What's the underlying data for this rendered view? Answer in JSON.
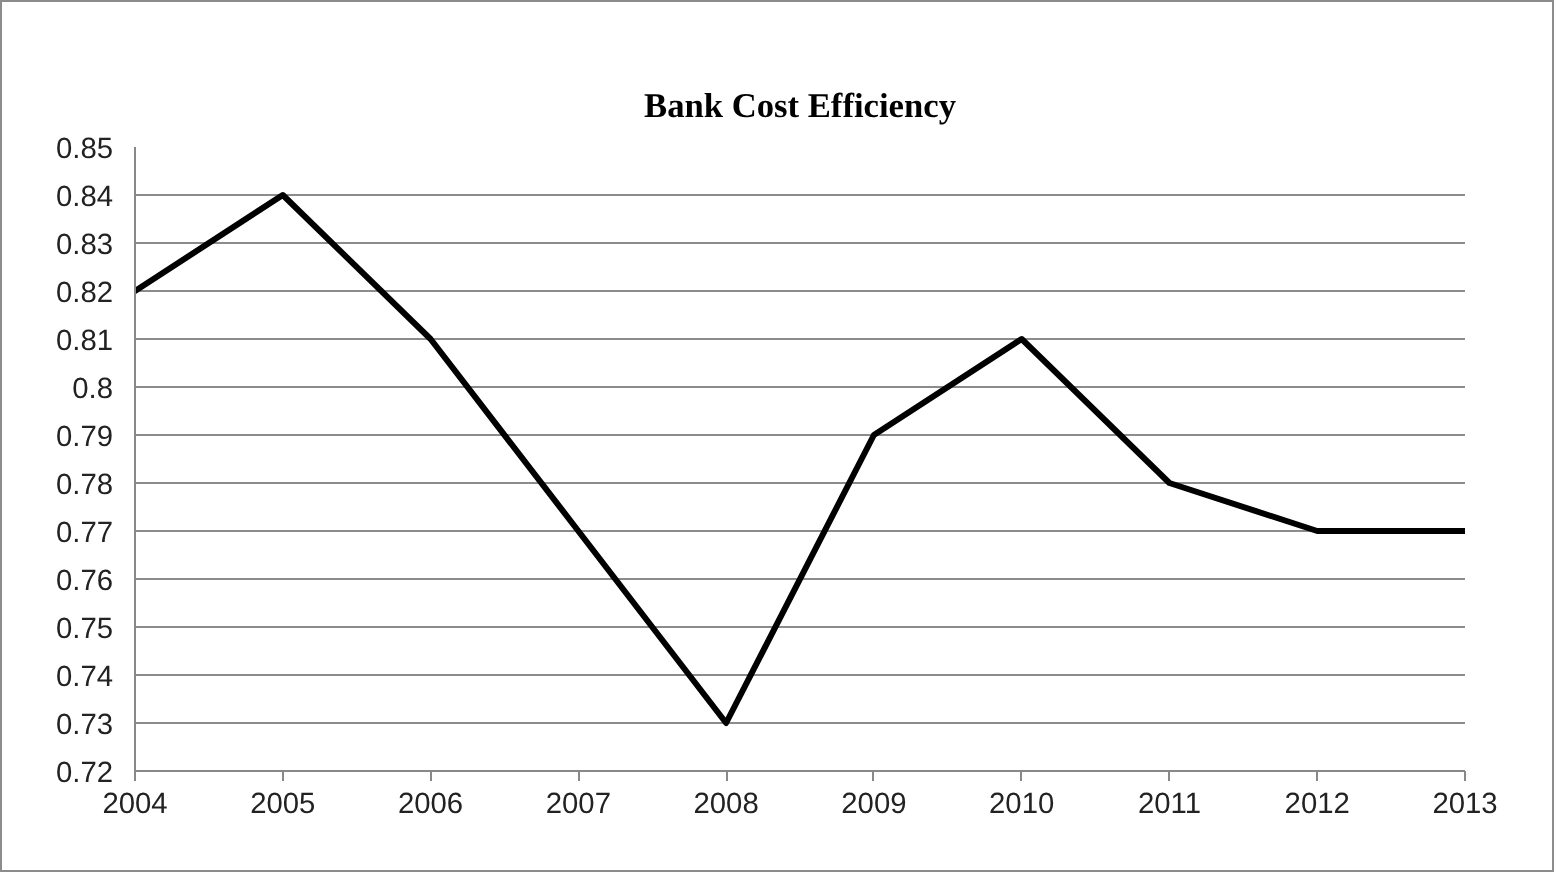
{
  "chart_data": {
    "type": "line",
    "title": "Bank Cost Efficiency",
    "x": [
      2004,
      2005,
      2006,
      2007,
      2008,
      2009,
      2010,
      2011,
      2012,
      2013
    ],
    "series": [
      {
        "color": "#000000",
        "values": [
          0.82,
          0.84,
          0.81,
          0.77,
          0.73,
          0.79,
          0.81,
          0.78,
          0.77,
          0.77
        ]
      }
    ],
    "xlim": [
      2004,
      2013
    ],
    "xticks": [
      2004,
      2005,
      2006,
      2007,
      2008,
      2009,
      2010,
      2011,
      2012,
      2013
    ],
    "ylim": [
      0.72,
      0.85
    ],
    "yticks": [
      0.72,
      0.73,
      0.74,
      0.75,
      0.76,
      0.77,
      0.78,
      0.79,
      0.8,
      0.81,
      0.82,
      0.83,
      0.84,
      0.85
    ],
    "grid": "y",
    "marker": "none",
    "line_style": "solid"
  }
}
